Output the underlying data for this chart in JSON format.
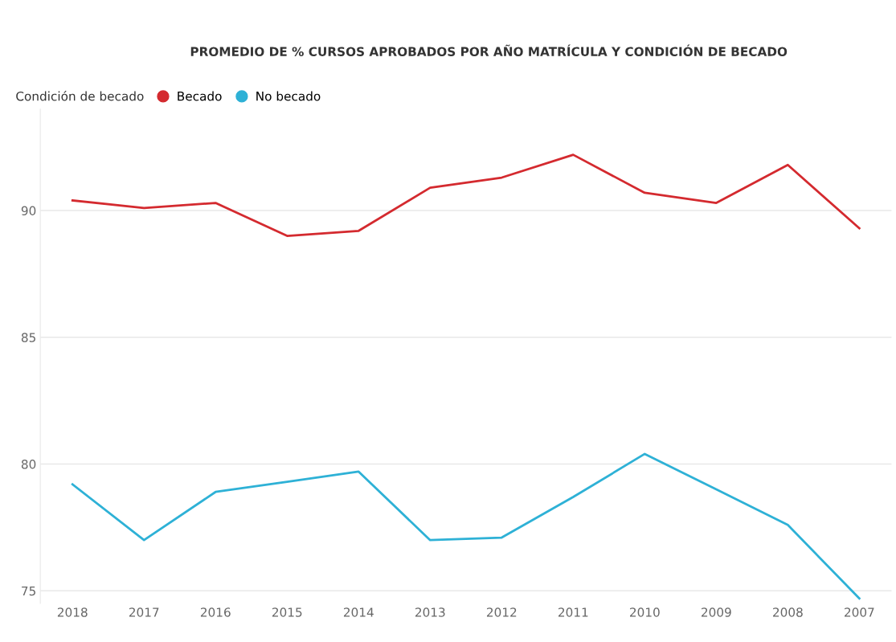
{
  "chart_data": {
    "type": "line",
    "title": "PROMEDIO DE % CURSOS APROBADOS POR AÑO MATRÍCULA Y CONDICIÓN DE BECADO",
    "legend_title": "Condición de becado",
    "legend": "top left",
    "grid": "y",
    "categories": [
      "2018",
      "2017",
      "2016",
      "2015",
      "2014",
      "2013",
      "2012",
      "2011",
      "2010",
      "2009",
      "2008",
      "2007"
    ],
    "ylim": [
      74.5,
      94
    ],
    "yticks": [
      75,
      80,
      85,
      90
    ],
    "series": [
      {
        "name": "Becado",
        "color": "#d42a2f",
        "values": [
          90.4,
          90.1,
          90.3,
          89.0,
          89.2,
          90.9,
          91.3,
          92.2,
          90.7,
          90.3,
          91.8,
          89.3
        ]
      },
      {
        "name": "No becado",
        "color": "#2eb1d6",
        "values": [
          79.2,
          77.0,
          78.9,
          79.3,
          79.7,
          77.0,
          77.1,
          78.7,
          80.4,
          79.0,
          77.6,
          74.7
        ]
      }
    ]
  }
}
